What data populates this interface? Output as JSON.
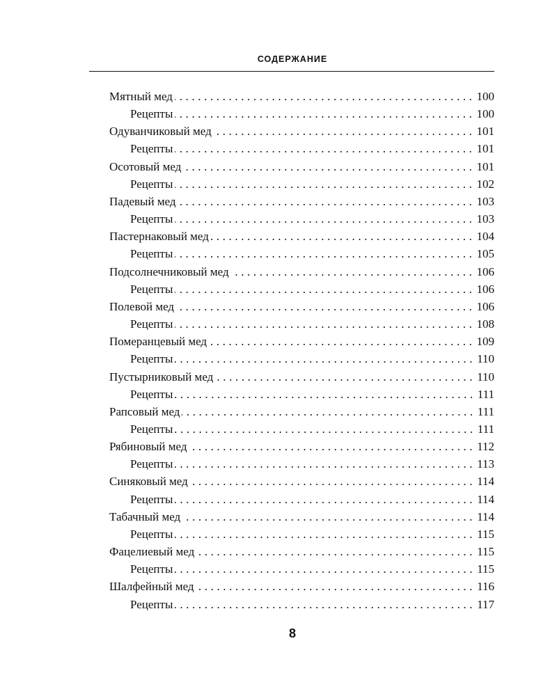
{
  "header": {
    "title": "СОДЕРЖАНИЕ"
  },
  "entries": [
    {
      "title": "Мятный мед",
      "page": "100",
      "level": 1
    },
    {
      "title": "Рецепты",
      "page": "100",
      "level": 2
    },
    {
      "title": "Одуванчиковый мед",
      "page": "101",
      "level": 1
    },
    {
      "title": "Рецепты",
      "page": "101",
      "level": 2
    },
    {
      "title": "Осотовый мед",
      "page": "101",
      "level": 1
    },
    {
      "title": "Рецепты",
      "page": "102",
      "level": 2
    },
    {
      "title": "Падевый мед",
      "page": "103",
      "level": 1
    },
    {
      "title": "Рецепты",
      "page": "103",
      "level": 2
    },
    {
      "title": "Пастернаковый мед",
      "page": "104",
      "level": 1
    },
    {
      "title": "Рецепты",
      "page": "105",
      "level": 2
    },
    {
      "title": "Подсолнечниковый мед",
      "page": "106",
      "level": 1
    },
    {
      "title": "Рецепты",
      "page": "106",
      "level": 2
    },
    {
      "title": "Полевой мед",
      "page": "106",
      "level": 1
    },
    {
      "title": "Рецепты",
      "page": "108",
      "level": 2
    },
    {
      "title": "Померанцевый мед",
      "page": "109",
      "level": 1
    },
    {
      "title": "Рецепты",
      "page": "110",
      "level": 2
    },
    {
      "title": "Пустырниковый мед",
      "page": "110",
      "level": 1
    },
    {
      "title": "Рецепты",
      "page": "111",
      "level": 2
    },
    {
      "title": "Рапсовый мед",
      "page": "111",
      "level": 1
    },
    {
      "title": "Рецепты",
      "page": "111",
      "level": 2
    },
    {
      "title": "Рябиновый мед",
      "page": "112",
      "level": 1
    },
    {
      "title": "Рецепты",
      "page": "113",
      "level": 2
    },
    {
      "title": "Синяковый мед",
      "page": "114",
      "level": 1
    },
    {
      "title": "Рецепты",
      "page": "114",
      "level": 2
    },
    {
      "title": "Табачный мед",
      "page": "114",
      "level": 1
    },
    {
      "title": "Рецепты",
      "page": "115",
      "level": 2
    },
    {
      "title": "Фацелиевый мед",
      "page": "115",
      "level": 1
    },
    {
      "title": "Рецепты",
      "page": "115",
      "level": 2
    },
    {
      "title": "Шалфейный мед",
      "page": "116",
      "level": 1
    },
    {
      "title": "Рецепты",
      "page": "117",
      "level": 2
    }
  ],
  "footer": {
    "page_number": "8"
  }
}
